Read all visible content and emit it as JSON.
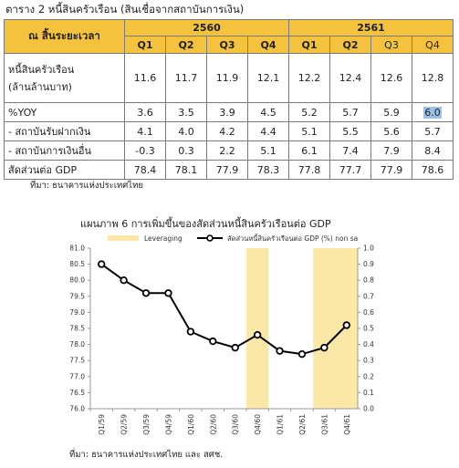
{
  "table": {
    "caption": "ตาราง 2   หนี้สินครัวเรือน (สินเชื่อจากสถาบันการเงิน)",
    "stub_header": "ณ สิ้นระยะเวลา",
    "years": [
      "2560",
      "2561"
    ],
    "quarters": [
      "Q1",
      "Q2",
      "Q3",
      "Q4",
      "Q1",
      "Q2",
      "Q3",
      "Q4"
    ],
    "rows": [
      {
        "label": "หนี้สินครัวเรือน",
        "label2": "(ล้านล้านบาท)",
        "values": [
          "11.6",
          "11.7",
          "11.9",
          "12.1",
          "12.2",
          "12.4",
          "12.6",
          "12.8"
        ]
      },
      {
        "label": "%YOY",
        "values": [
          "3.6",
          "3.5",
          "3.9",
          "4.5",
          "5.2",
          "5.7",
          "5.9",
          "6.0"
        ]
      },
      {
        "label": "- สถาบันรับฝากเงิน",
        "values": [
          "4.1",
          "4.0",
          "4.2",
          "4.4",
          "5.1",
          "5.5",
          "5.6",
          "5.7"
        ]
      },
      {
        "label": "- สถาบันการเงินอื่น",
        "values": [
          "-0.3",
          "0.3",
          "2.2",
          "5.1",
          "6.1",
          "7.4",
          "7.9",
          "8.4"
        ]
      },
      {
        "label": "สัดส่วนต่อ GDP",
        "values": [
          "78.4",
          "78.1",
          "77.9",
          "78.3",
          "77.8",
          "77.7",
          "77.9",
          "78.6"
        ]
      }
    ],
    "source": "ที่มา:   ธนาคารแห่งประเทศไทย"
  },
  "chart_data": {
    "type": "line",
    "title": "แผนภาพ 6 การเพิ่มขึ้นของสัดส่วนหนี้สินครัวเรือนต่อ GDP",
    "categories": [
      "Q1/59",
      "Q2/59",
      "Q3/59",
      "Q4/59",
      "Q1/60",
      "Q2/60",
      "Q3/60",
      "Q4/60",
      "Q1/61",
      "Q2/61",
      "Q3/61",
      "Q4/61"
    ],
    "series": [
      {
        "name": "สัดส่วนหนี้สินครัวเรือนต่อ GDP (%) non sa",
        "values": [
          80.5,
          80.0,
          79.6,
          79.6,
          78.4,
          78.1,
          77.9,
          78.3,
          77.8,
          77.7,
          77.9,
          78.6
        ],
        "color": "#000000"
      }
    ],
    "leveraging": {
      "name": "Leveraging",
      "categories": [
        "Q4/60",
        "Q3/61",
        "Q4/61"
      ],
      "color": "#fbe7a6"
    },
    "ylim": [
      76.0,
      81.0
    ],
    "yticks": [
      "81.0",
      "80.5",
      "80.0",
      "79.5",
      "79.0",
      "78.5",
      "78.0",
      "77.5",
      "77.0",
      "76.5",
      "76.0"
    ],
    "y2lim": [
      0,
      1.0
    ],
    "y2ticks": [
      "1.0",
      "0.9",
      "0.8",
      "0.7",
      "0.6",
      "0.5",
      "0.4",
      "0.3",
      "0.2",
      "0.1",
      "0.0"
    ],
    "legend_position": "top"
  },
  "chart_source": "ที่มา: ธนาคารแห่งประเทศไทย และ สศช."
}
